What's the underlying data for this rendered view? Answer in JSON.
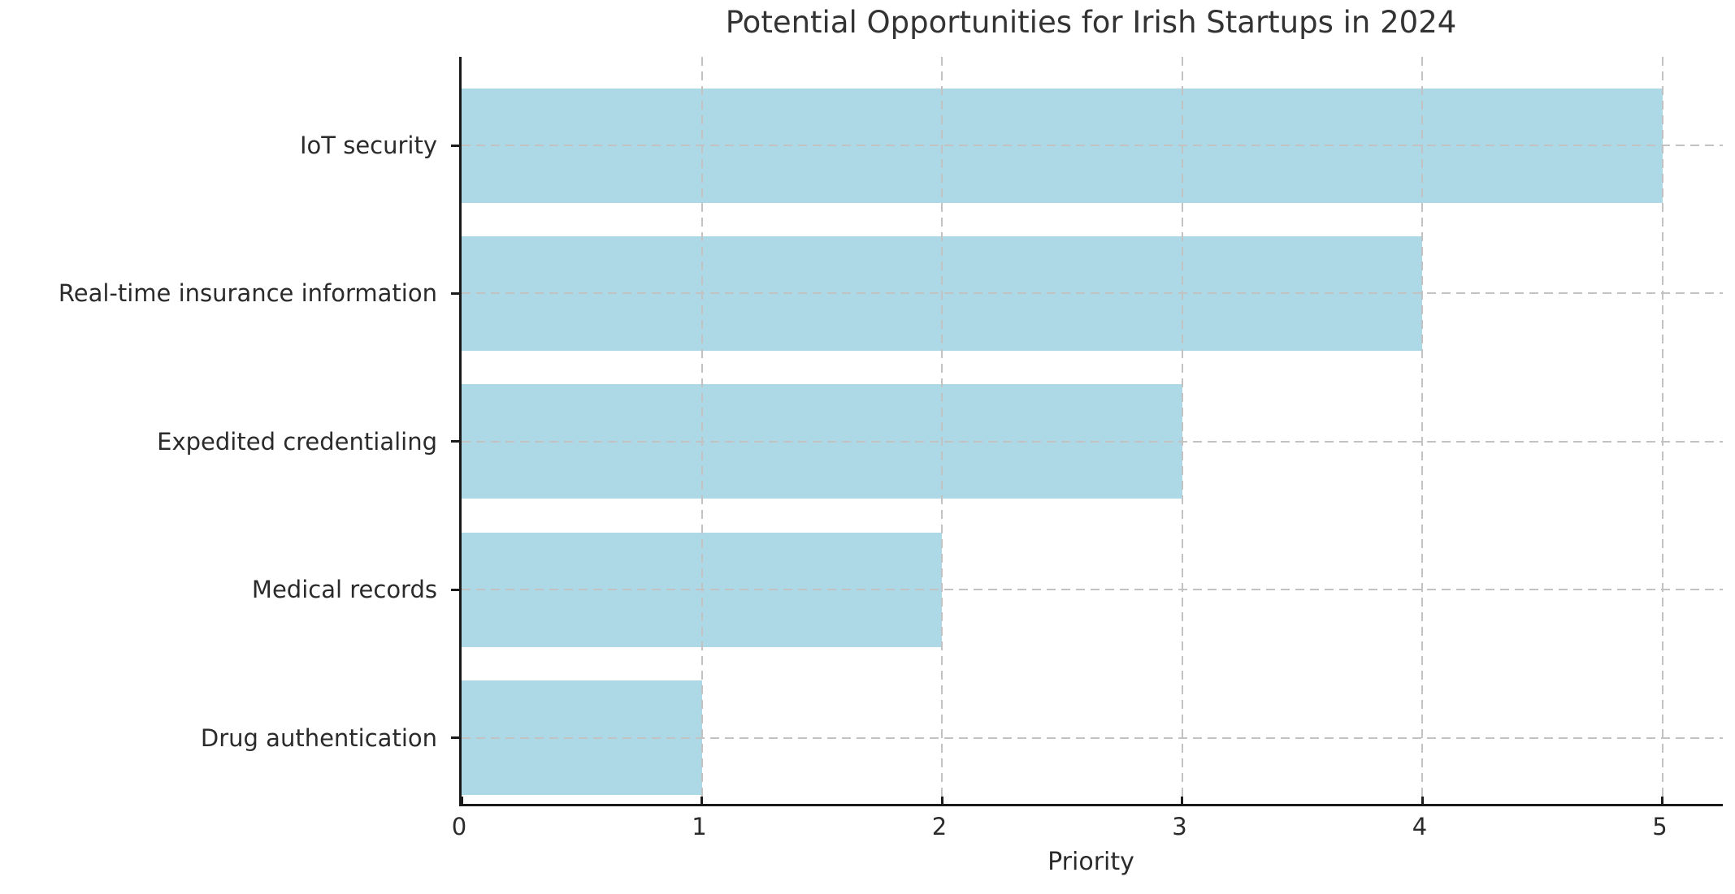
{
  "chart_data": {
    "type": "bar",
    "orientation": "horizontal",
    "title": "Potential Opportunities for Irish Startups in 2024",
    "categories": [
      "IoT security",
      "Real-time insurance information",
      "Expedited credentialing",
      "Medical records",
      "Drug authentication"
    ],
    "values": [
      5,
      4,
      3,
      2,
      1
    ],
    "xlabel": "Priority",
    "ylabel": "",
    "xticks": [
      0,
      1,
      2,
      3,
      4,
      5
    ],
    "xlim": [
      0,
      5.26
    ],
    "grid": true,
    "grid_style": "dashed",
    "legend": "none",
    "bar_color": "#ADD8E6",
    "grid_color": "#c2c2c2",
    "axis_color": "#1a1a1a",
    "text_color": "#2b2b2b",
    "title_color": "#333333",
    "background_color": "#ffffff"
  }
}
